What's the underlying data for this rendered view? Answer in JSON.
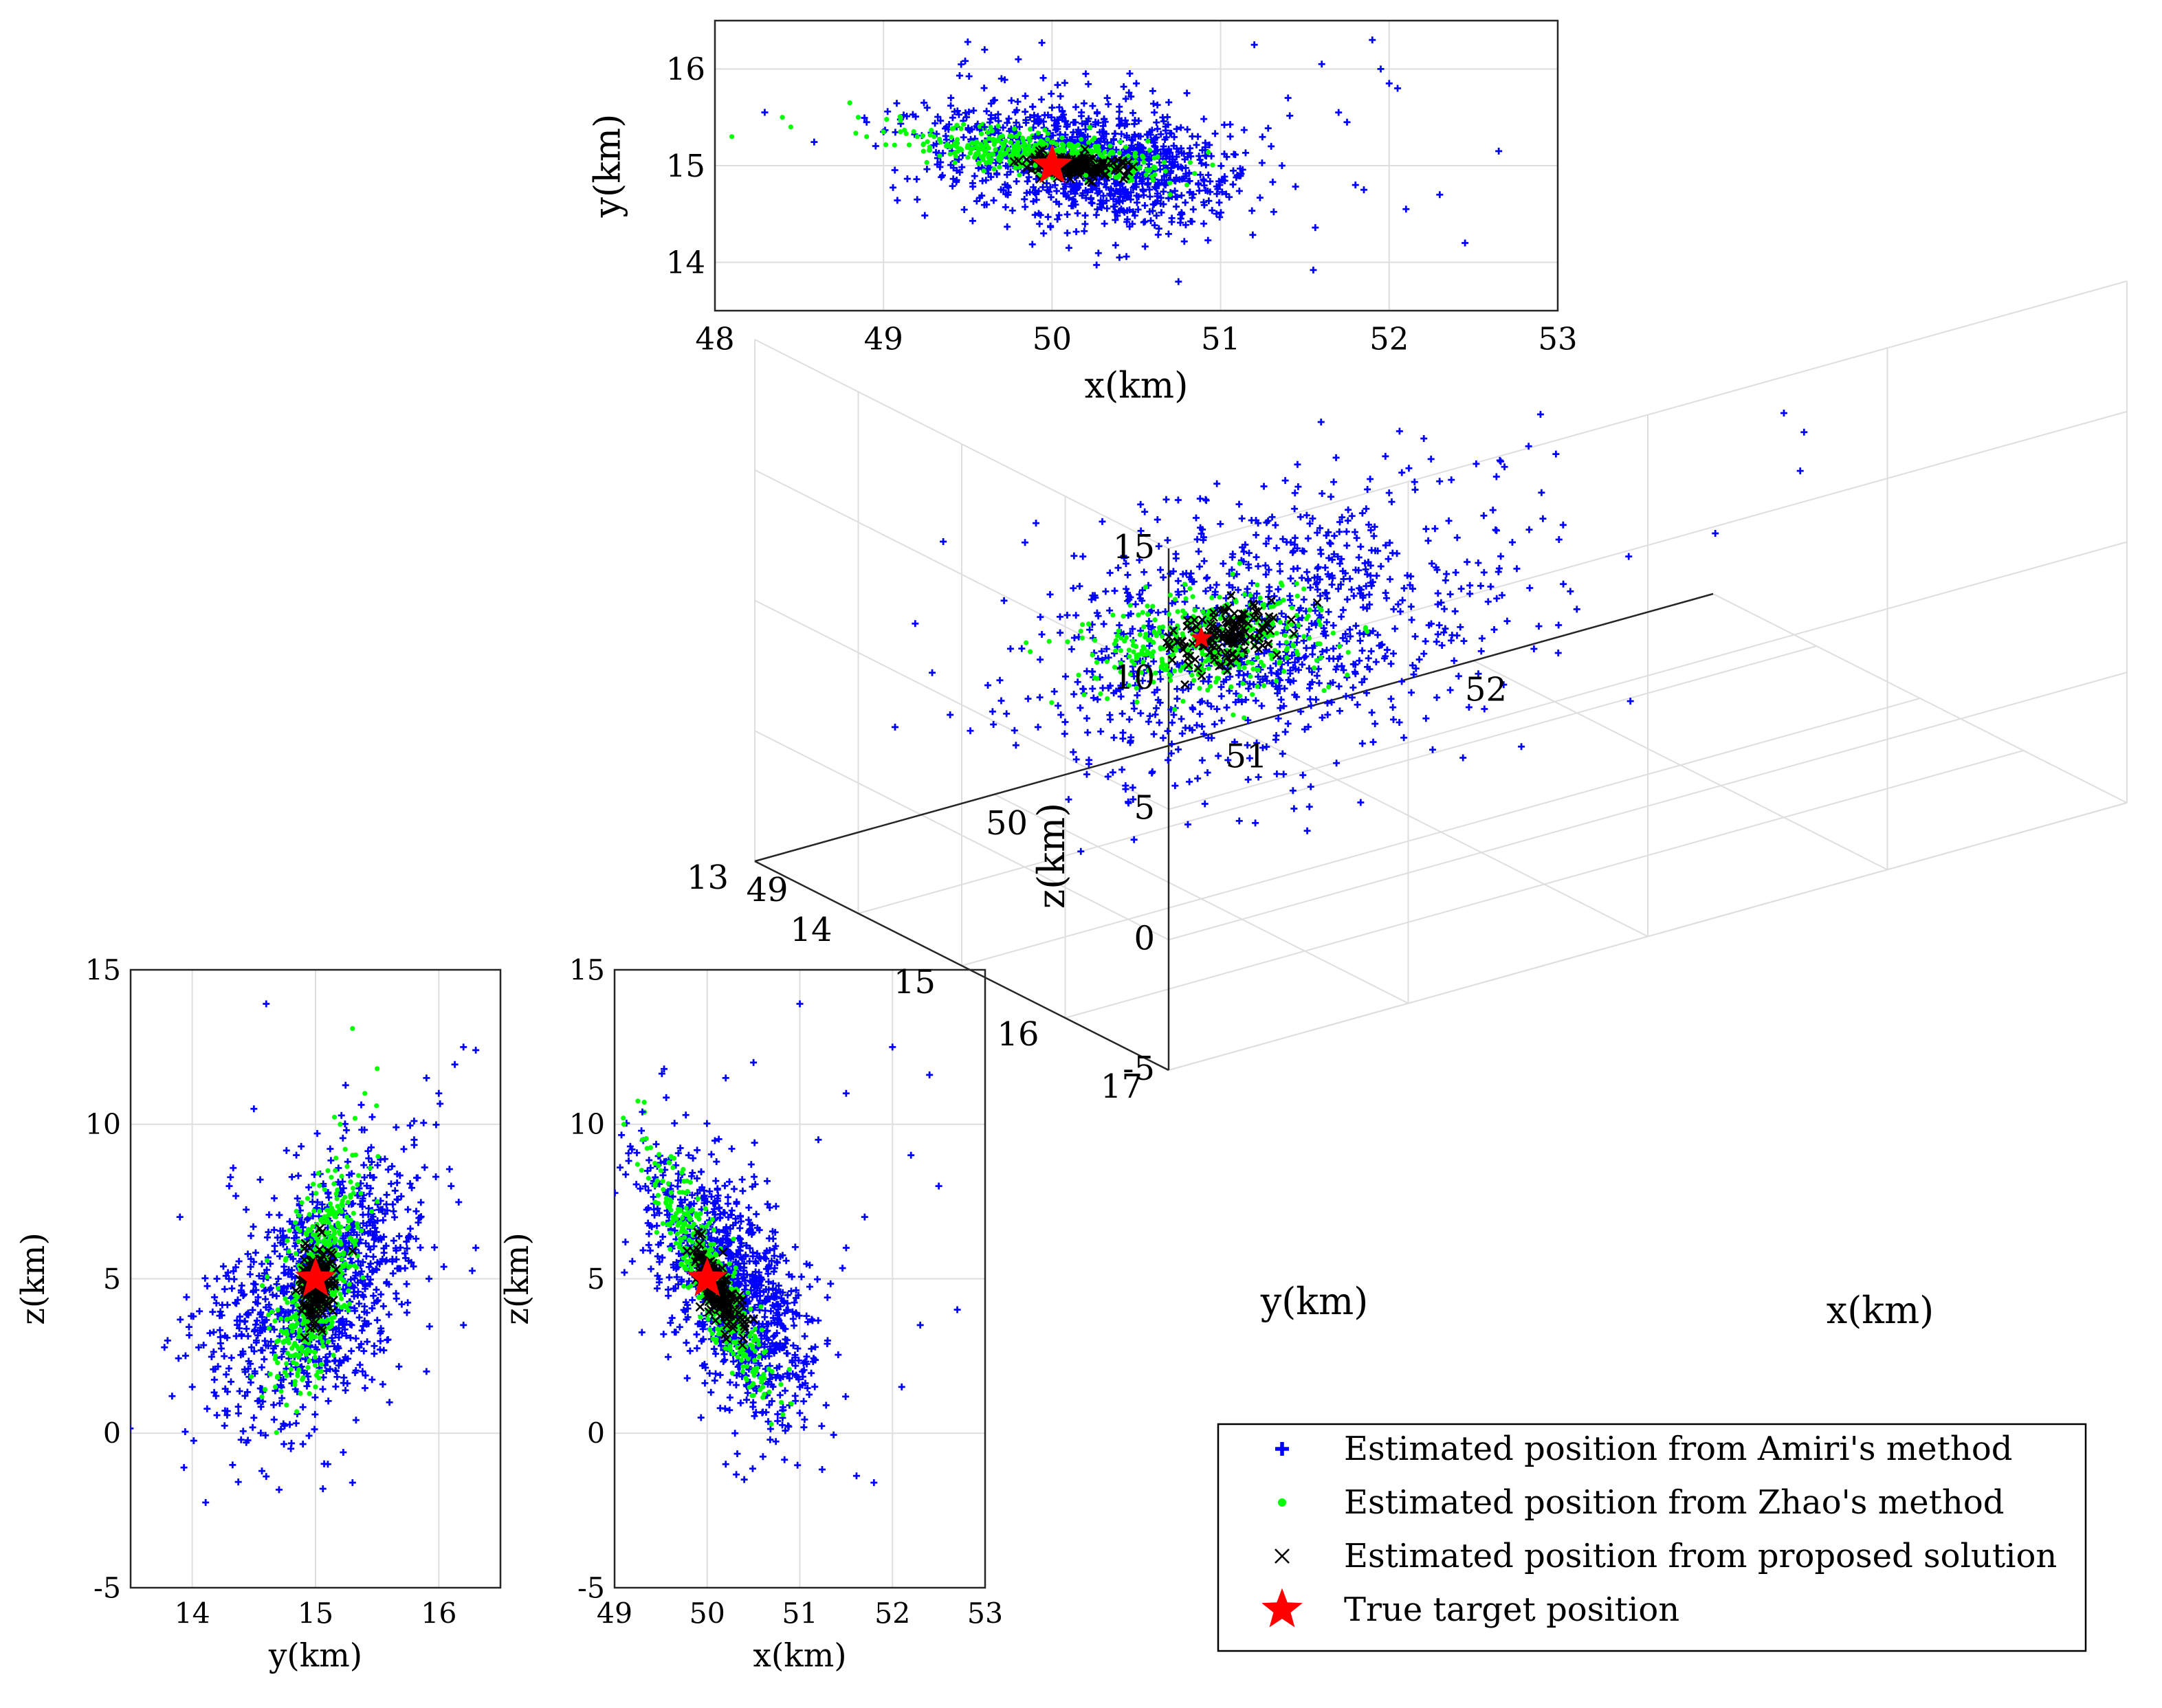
{
  "chart_data": [
    {
      "id": "xy",
      "type": "scatter",
      "title": "",
      "xlabel": "x(km)",
      "ylabel": "y(km)",
      "xlim": [
        48,
        53
      ],
      "ylim": [
        13.5,
        16.5
      ],
      "xticks": [
        "48",
        "49",
        "50",
        "51",
        "52",
        "53"
      ],
      "yticks": [
        "14",
        "15",
        "16"
      ],
      "grid": true,
      "series": [
        {
          "name": "Estimated position from Amiri's method",
          "marker": "plus",
          "color": "#0000ff",
          "points": [
            [
              49.5,
              16.28
            ],
            [
              49.6,
              16.2
            ],
            [
              49.8,
              16.1
            ],
            [
              50.2,
              15.95
            ],
            [
              50.5,
              15.85
            ],
            [
              50.8,
              15.75
            ],
            [
              51.2,
              16.25
            ],
            [
              51.6,
              16.05
            ],
            [
              51.9,
              16.3
            ],
            [
              52.0,
              15.85
            ],
            [
              52.05,
              15.8
            ],
            [
              51.7,
              15.55
            ],
            [
              51.75,
              15.45
            ],
            [
              52.65,
              15.15
            ],
            [
              51.8,
              14.8
            ],
            [
              51.85,
              14.75
            ],
            [
              52.1,
              14.55
            ],
            [
              52.3,
              14.7
            ],
            [
              52.45,
              14.2
            ],
            [
              51.55,
              13.92
            ],
            [
              50.75,
              13.8
            ],
            [
              50.4,
              14.05
            ],
            [
              50.1,
              14.15
            ],
            [
              49.95,
              14.3
            ],
            [
              49.2,
              14.65
            ],
            [
              49.35,
              14.9
            ],
            [
              49.0,
              15.35
            ],
            [
              48.9,
              15.45
            ],
            [
              49.6,
              15.4
            ],
            [
              49.9,
              15.3
            ],
            [
              50.3,
              15.35
            ],
            [
              50.6,
              14.6
            ],
            [
              50.9,
              14.4
            ],
            [
              51.1,
              14.9
            ],
            [
              51.3,
              15.2
            ],
            [
              49.4,
              15.7
            ],
            [
              49.7,
              15.9
            ],
            [
              50.0,
              15.6
            ],
            [
              51.4,
              15.7
            ],
            [
              51.95,
              16.0
            ]
          ]
        },
        {
          "name": "Estimated position from Zhao's method",
          "marker": "dot",
          "color": "#00ff00",
          "points": [
            [
              48.1,
              15.3
            ],
            [
              48.4,
              15.5
            ],
            [
              48.45,
              15.4
            ],
            [
              48.8,
              15.65
            ],
            [
              48.85,
              15.5
            ],
            [
              48.9,
              15.3
            ],
            [
              49.0,
              15.35
            ],
            [
              49.1,
              15.35
            ],
            [
              49.2,
              15.3
            ],
            [
              49.3,
              15.3
            ],
            [
              49.4,
              15.2
            ],
            [
              49.5,
              15.2
            ],
            [
              49.6,
              15.15
            ],
            [
              49.7,
              15.1
            ],
            [
              49.8,
              15.05
            ],
            [
              49.9,
              15.0
            ],
            [
              50.0,
              14.95
            ],
            [
              50.2,
              14.9
            ],
            [
              50.4,
              14.9
            ],
            [
              50.6,
              14.85
            ],
            [
              50.8,
              14.8
            ],
            [
              50.7,
              14.7
            ]
          ]
        },
        {
          "name": "Estimated position from proposed solution",
          "marker": "x",
          "color": "#000000",
          "points": [
            [
              49.8,
              15.05
            ],
            [
              49.85,
              14.98
            ],
            [
              49.9,
              15.08
            ],
            [
              50.05,
              15.02
            ],
            [
              50.1,
              14.97
            ],
            [
              50.2,
              14.96
            ],
            [
              50.3,
              15.0
            ],
            [
              50.35,
              15.05
            ],
            [
              50.4,
              14.95
            ],
            [
              50.45,
              15.03
            ]
          ]
        },
        {
          "name": "True target position",
          "marker": "star",
          "color": "#ff0000",
          "points": [
            [
              50,
              15
            ]
          ]
        }
      ]
    },
    {
      "id": "yz",
      "type": "scatter",
      "title": "",
      "xlabel": "y(km)",
      "ylabel": "z(km)",
      "xlim": [
        13.5,
        16.5
      ],
      "ylim": [
        -5,
        15
      ],
      "xticks": [
        "14",
        "15",
        "16"
      ],
      "yticks": [
        "-5",
        "0",
        "5",
        "10",
        "15"
      ],
      "grid": true,
      "series": [
        {
          "name": "Estimated position from Amiri's method",
          "marker": "plus",
          "color": "#0000ff",
          "points": [
            [
              14.6,
              13.9
            ],
            [
              16.2,
              12.5
            ],
            [
              16.3,
              12.4
            ],
            [
              15.9,
              11.5
            ],
            [
              16.0,
              11.0
            ],
            [
              14.5,
              10.5
            ],
            [
              13.9,
              7.0
            ],
            [
              13.8,
              3.0
            ],
            [
              14.0,
              1.5
            ],
            [
              14.6,
              -1.4
            ],
            [
              15.3,
              -1.6
            ],
            [
              15.1,
              -1.0
            ],
            [
              14.8,
              -0.5
            ],
            [
              15.6,
              1.0
            ],
            [
              15.9,
              2.0
            ],
            [
              16.2,
              3.5
            ],
            [
              16.3,
              6.0
            ],
            [
              16.1,
              8.0
            ],
            [
              15.8,
              9.5
            ],
            [
              14.3,
              8.0
            ],
            [
              14.2,
              5.0
            ],
            [
              14.5,
              0.5
            ]
          ]
        },
        {
          "name": "Estimated position from Zhao's method",
          "marker": "dot",
          "color": "#00ff00",
          "points": [
            [
              15.3,
              13.1
            ],
            [
              15.5,
              11.8
            ],
            [
              15.4,
              11.0
            ],
            [
              15.2,
              10.0
            ],
            [
              15.3,
              9.0
            ],
            [
              15.5,
              7.5
            ],
            [
              14.8,
              2.5
            ],
            [
              14.9,
              1.8
            ],
            [
              15.0,
              1.5
            ],
            [
              14.7,
              3.0
            ],
            [
              15.1,
              8.5
            ]
          ]
        },
        {
          "name": "Estimated position from proposed solution",
          "marker": "x",
          "color": "#000000",
          "points": [
            [
              15.05,
              6.5
            ],
            [
              14.95,
              6.0
            ],
            [
              15.1,
              5.9
            ],
            [
              14.9,
              5.0
            ],
            [
              15.3,
              5.9
            ],
            [
              15.0,
              3.6
            ],
            [
              14.95,
              4.0
            ],
            [
              15.1,
              4.2
            ]
          ]
        },
        {
          "name": "True target position",
          "marker": "star",
          "color": "#ff0000",
          "points": [
            [
              15,
              5
            ]
          ]
        }
      ]
    },
    {
      "id": "xz",
      "type": "scatter",
      "title": "",
      "xlabel": "x(km)",
      "ylabel": "z(km)",
      "xlim": [
        49,
        53
      ],
      "ylim": [
        -5,
        15
      ],
      "xticks": [
        "49",
        "50",
        "51",
        "52",
        "53"
      ],
      "yticks": [
        "-5",
        "0",
        "5",
        "10",
        "15"
      ],
      "grid": true,
      "series": [
        {
          "name": "Estimated position from Amiri's method",
          "marker": "plus",
          "color": "#0000ff",
          "points": [
            [
              51.0,
              13.9
            ],
            [
              52.0,
              12.5
            ],
            [
              52.4,
              11.6
            ],
            [
              51.5,
              11.0
            ],
            [
              50.5,
              12.0
            ],
            [
              50.2,
              11.5
            ],
            [
              52.2,
              9.0
            ],
            [
              52.7,
              4.0
            ],
            [
              52.3,
              3.5
            ],
            [
              51.8,
              -1.6
            ],
            [
              52.1,
              1.5
            ],
            [
              50.4,
              -1.5
            ],
            [
              50.2,
              -1.0
            ],
            [
              50.3,
              0.0
            ],
            [
              51.0,
              1.5
            ],
            [
              51.3,
              3.0
            ],
            [
              51.5,
              6.0
            ],
            [
              51.2,
              9.5
            ],
            [
              49.3,
              10.4
            ],
            [
              49.8,
              9.0
            ],
            [
              51.7,
              7.0
            ],
            [
              52.5,
              8.0
            ]
          ]
        },
        {
          "name": "Estimated position from Zhao's method",
          "marker": "dot",
          "color": "#00ff00",
          "points": [
            [
              49.1,
              10.0
            ],
            [
              49.3,
              9.5
            ],
            [
              49.5,
              8.5
            ],
            [
              49.7,
              7.8
            ],
            [
              49.9,
              7.0
            ],
            [
              50.1,
              5.0
            ],
            [
              50.3,
              4.0
            ],
            [
              50.5,
              3.0
            ],
            [
              50.7,
              2.0
            ],
            [
              50.8,
              1.0
            ],
            [
              50.6,
              1.5
            ],
            [
              50.4,
              2.5
            ]
          ]
        },
        {
          "name": "Estimated position from proposed solution",
          "marker": "x",
          "color": "#000000",
          "points": [
            [
              49.9,
              6.5
            ],
            [
              49.95,
              5.8
            ],
            [
              50.0,
              5.5
            ],
            [
              50.1,
              4.8
            ],
            [
              50.2,
              4.2
            ],
            [
              50.25,
              3.8
            ],
            [
              50.3,
              4.0
            ],
            [
              50.4,
              3.6
            ],
            [
              50.5,
              3.7
            ]
          ]
        },
        {
          "name": "True target position",
          "marker": "star",
          "color": "#ff0000",
          "points": [
            [
              50,
              5
            ]
          ]
        }
      ]
    },
    {
      "id": "xyz",
      "type": "scatter",
      "title": "",
      "xlabel": "x(km)",
      "ylabel": "y(km)",
      "zlabel": "z(km)",
      "xlim": [
        49,
        53
      ],
      "ylim": [
        13,
        17
      ],
      "zlim": [
        -5,
        15
      ],
      "xticks": [
        "49",
        "50",
        "51",
        "52"
      ],
      "yticks": [
        "13",
        "14",
        "15",
        "16",
        "17"
      ],
      "zticks": [
        "-5",
        "0",
        "5",
        "10",
        "15"
      ],
      "grid": true,
      "series": [
        {
          "name": "Estimated position from Amiri's method",
          "marker": "plus",
          "color": "#0000ff",
          "points": [
            [
              50.5,
              15.0,
              12.0
            ],
            [
              51.2,
              15.5,
              11.5
            ],
            [
              52.0,
              16.0,
              10.5
            ],
            [
              52.3,
              15.5,
              8.0
            ],
            [
              51.0,
              14.5,
              7.0
            ],
            [
              50.0,
              15.0,
              9.0
            ],
            [
              49.5,
              15.5,
              6.0
            ],
            [
              50.0,
              16.0,
              3.5
            ],
            [
              51.5,
              14.0,
              3.0
            ],
            [
              52.5,
              15.0,
              5.0
            ],
            [
              50.8,
              14.2,
              -1.0
            ],
            [
              50.3,
              14.5,
              1.0
            ],
            [
              51.8,
              15.8,
              6.0
            ],
            [
              49.8,
              14.5,
              4.0
            ],
            [
              50.5,
              15.8,
              1.5
            ],
            [
              52.0,
              14.5,
              2.0
            ]
          ]
        },
        {
          "name": "Estimated position from Zhao's method",
          "marker": "dot",
          "color": "#00ff00",
          "points": [
            [
              49.2,
              15.8,
              8.0
            ],
            [
              49.5,
              15.5,
              7.0
            ],
            [
              49.7,
              15.3,
              6.0
            ],
            [
              49.9,
              15.1,
              5.0
            ],
            [
              50.1,
              14.9,
              4.0
            ],
            [
              50.3,
              14.7,
              3.0
            ],
            [
              50.5,
              14.6,
              2.0
            ]
          ]
        },
        {
          "name": "Estimated position from proposed solution",
          "marker": "x",
          "color": "#000000",
          "points": [
            [
              49.95,
              15.02,
              5.5
            ],
            [
              50.05,
              14.98,
              4.8
            ],
            [
              50.15,
              14.95,
              4.3
            ],
            [
              50.1,
              15.05,
              5.0
            ]
          ]
        },
        {
          "name": "True target position",
          "marker": "star",
          "color": "#ff0000",
          "points": [
            [
              50,
              15,
              5
            ]
          ]
        }
      ]
    }
  ],
  "legend": {
    "placement": "bottom-right",
    "entries": [
      {
        "marker": "plus",
        "color": "#0000ff",
        "label": "Estimated position from Amiri's method"
      },
      {
        "marker": "dot",
        "color": "#00ff00",
        "label": "Estimated position from Zhao's method"
      },
      {
        "marker": "x",
        "color": "#000000",
        "label": "Estimated position from proposed solution"
      },
      {
        "marker": "star",
        "color": "#ff0000",
        "label": "True target position"
      }
    ]
  },
  "colors": {
    "amiri": "#0000ff",
    "zhao": "#00ff00",
    "proposed": "#000000",
    "truth": "#ff0000",
    "grid": "#dedede",
    "axis": "#262626"
  }
}
